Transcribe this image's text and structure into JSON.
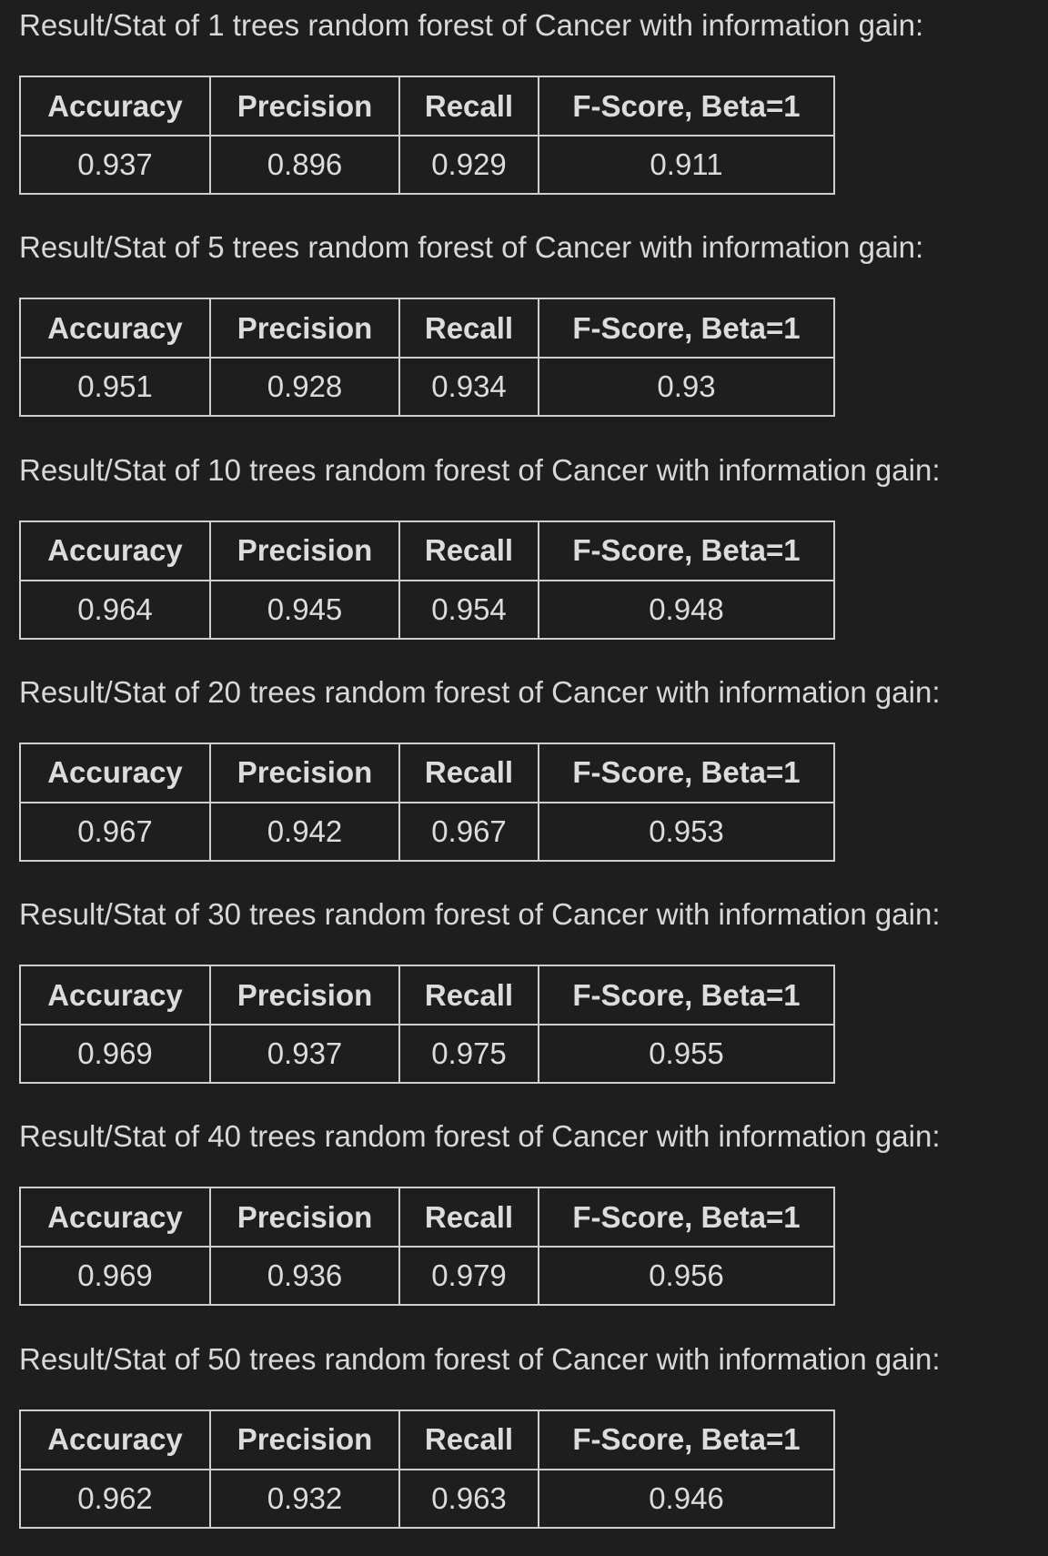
{
  "sections": [
    {
      "caption": "Result/Stat of 1 trees random forest of Cancer with information gain:",
      "headers": [
        "Accuracy",
        "Precision",
        "Recall",
        "F-Score, Beta=1"
      ],
      "values": [
        "0.937",
        "0.896",
        "0.929",
        "0.911"
      ]
    },
    {
      "caption": "Result/Stat of 5 trees random forest of Cancer with information gain:",
      "headers": [
        "Accuracy",
        "Precision",
        "Recall",
        "F-Score, Beta=1"
      ],
      "values": [
        "0.951",
        "0.928",
        "0.934",
        "0.93"
      ]
    },
    {
      "caption": "Result/Stat of 10 trees random forest of Cancer with information gain:",
      "headers": [
        "Accuracy",
        "Precision",
        "Recall",
        "F-Score, Beta=1"
      ],
      "values": [
        "0.964",
        "0.945",
        "0.954",
        "0.948"
      ]
    },
    {
      "caption": "Result/Stat of 20 trees random forest of Cancer with information gain:",
      "headers": [
        "Accuracy",
        "Precision",
        "Recall",
        "F-Score, Beta=1"
      ],
      "values": [
        "0.967",
        "0.942",
        "0.967",
        "0.953"
      ]
    },
    {
      "caption": "Result/Stat of 30 trees random forest of Cancer with information gain:",
      "headers": [
        "Accuracy",
        "Precision",
        "Recall",
        "F-Score, Beta=1"
      ],
      "values": [
        "0.969",
        "0.937",
        "0.975",
        "0.955"
      ]
    },
    {
      "caption": "Result/Stat of 40 trees random forest of Cancer with information gain:",
      "headers": [
        "Accuracy",
        "Precision",
        "Recall",
        "F-Score, Beta=1"
      ],
      "values": [
        "0.969",
        "0.936",
        "0.979",
        "0.956"
      ]
    },
    {
      "caption": "Result/Stat of 50 trees random forest of Cancer with information gain:",
      "headers": [
        "Accuracy",
        "Precision",
        "Recall",
        "F-Score, Beta=1"
      ],
      "values": [
        "0.962",
        "0.932",
        "0.963",
        "0.946"
      ]
    }
  ]
}
